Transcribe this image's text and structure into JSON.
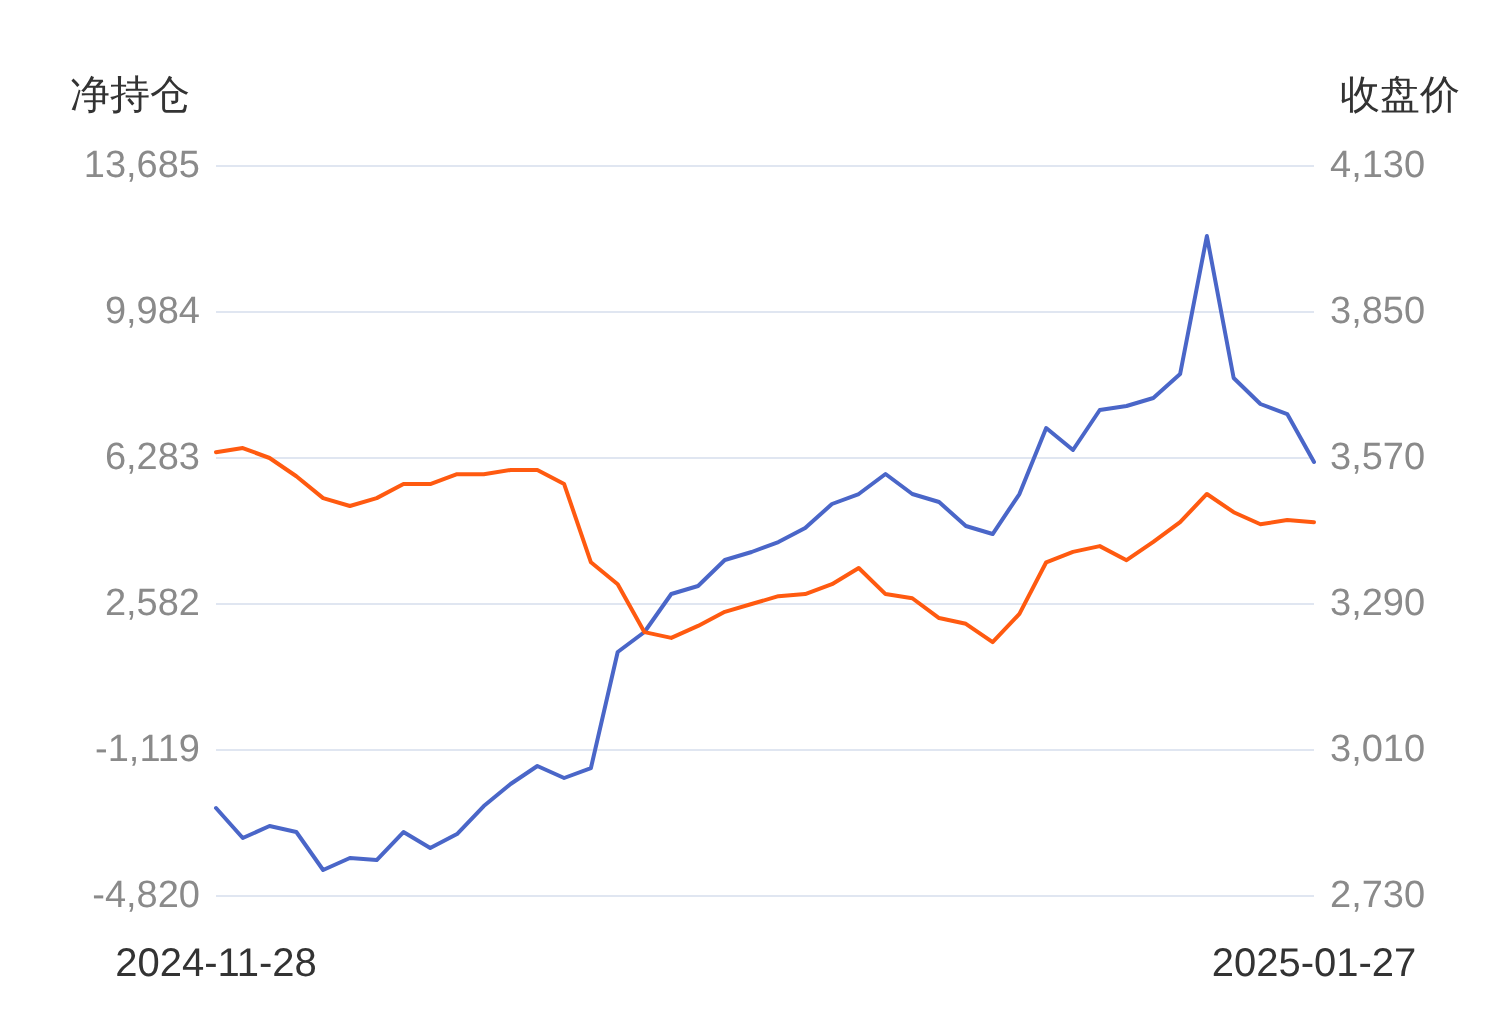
{
  "chart_data": {
    "type": "line",
    "ylabel": "净持仓",
    "y2label": "收盘价",
    "categories": [
      "2024-11-28",
      null,
      null,
      null,
      null,
      null,
      null,
      null,
      null,
      null,
      null,
      null,
      null,
      null,
      null,
      null,
      null,
      null,
      null,
      null,
      null,
      null,
      null,
      null,
      null,
      null,
      null,
      null,
      null,
      null,
      null,
      null,
      null,
      null,
      null,
      null,
      null,
      null,
      null,
      null,
      null,
      "2025-01-27"
    ],
    "series": [
      {
        "color": "#4a66c8",
        "values": [
          -2590,
          -3350,
          -3046,
          -3198,
          -4161,
          -3857,
          -3908,
          -3198,
          -3604,
          -3249,
          -2539,
          -1981,
          -1525,
          -1829,
          -1576,
          1365,
          1872,
          2835,
          3038,
          3697,
          3900,
          4153,
          4508,
          5117,
          5370,
          5877,
          5370,
          5167,
          4559,
          4356,
          5370,
          7043,
          6486,
          7500,
          7601,
          7804,
          8412,
          11910,
          8311,
          7652,
          7398,
          6181
        ]
      },
      {
        "color": "#ff5a10",
        "axis": "y2",
        "values": [
          3581,
          3589,
          3570,
          3535,
          3493,
          3478,
          3493,
          3520,
          3520,
          3539,
          3539,
          3547,
          3547,
          3520,
          3370,
          3328,
          3236,
          3225,
          3248,
          3275,
          3290,
          3305,
          3309,
          3328,
          3359,
          3309,
          3301,
          3263,
          3252,
          3217,
          3271,
          3370,
          3390,
          3401,
          3374,
          3409,
          3447,
          3501,
          3466,
          3443,
          3451,
          3447
        ]
      }
    ],
    "ylim": [
      -4820,
      13685
    ],
    "yticks": [
      {
        "value": -4820,
        "label": "-4,820"
      },
      {
        "value": -1119,
        "label": "-1,119"
      },
      {
        "value": 2582,
        "label": "2,582"
      },
      {
        "value": 6283,
        "label": "6,283"
      },
      {
        "value": 9984,
        "label": "9,984"
      },
      {
        "value": 13685,
        "label": "13,685"
      }
    ],
    "y2lim": [
      2730,
      4130
    ],
    "y2ticks": [
      {
        "value": 2730,
        "label": "2,730"
      },
      {
        "value": 3010,
        "label": "3,010"
      },
      {
        "value": 3290,
        "label": "3,290"
      },
      {
        "value": 3570,
        "label": "3,570"
      },
      {
        "value": 3850,
        "label": "3,850"
      },
      {
        "value": 4130,
        "label": "4,130"
      }
    ],
    "grid": "y",
    "marker": "none",
    "line_style": "solid"
  }
}
